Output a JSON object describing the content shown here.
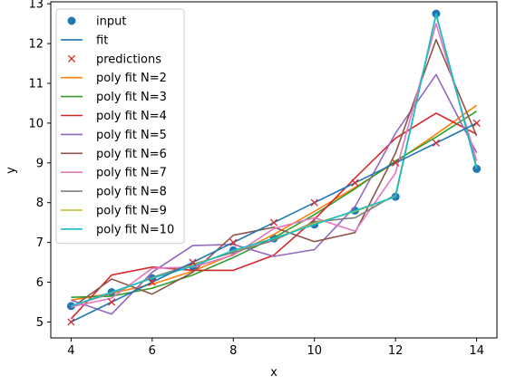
{
  "chart_data": {
    "type": "line",
    "title": "",
    "xlabel": "x",
    "ylabel": "y",
    "xlim": [
      3.5,
      14.5
    ],
    "ylim": [
      4.6,
      13.05
    ],
    "xticks": [
      "4",
      "6",
      "8",
      "10",
      "12",
      "14"
    ],
    "yticks": [
      "5",
      "6",
      "7",
      "8",
      "9",
      "10",
      "11",
      "12",
      "13"
    ],
    "grid": false,
    "legend_position": "top-left",
    "x": [
      4,
      5,
      6,
      7,
      8,
      9,
      10,
      11,
      12,
      13,
      14
    ],
    "series": [
      {
        "name": "input",
        "kind": "scatter",
        "marker": "circle",
        "color": "#1f77b4",
        "values": [
          5.4,
          5.75,
          6.1,
          6.4,
          6.8,
          7.1,
          7.45,
          7.8,
          8.15,
          12.75,
          8.85
        ]
      },
      {
        "name": "fit",
        "kind": "line",
        "color": "#1f77b4",
        "values": [
          5.0,
          5.5,
          6.0,
          6.5,
          7.0,
          7.5,
          8.0,
          8.5,
          9.0,
          9.5,
          10.0
        ]
      },
      {
        "name": "predictions",
        "kind": "scatter",
        "marker": "x",
        "color": "#d62728",
        "values": [
          5.0,
          5.5,
          6.0,
          6.5,
          7.0,
          7.5,
          8.0,
          8.5,
          9.0,
          9.5,
          10.0
        ]
      },
      {
        "name": "poly fit N=2",
        "kind": "line",
        "color": "#ff7f0e",
        "values": [
          5.55,
          5.72,
          5.95,
          6.28,
          6.7,
          7.2,
          7.78,
          8.38,
          9.02,
          9.72,
          10.45
        ]
      },
      {
        "name": "poly fit N=3",
        "kind": "line",
        "color": "#2ca02c",
        "values": [
          5.62,
          5.65,
          5.85,
          6.18,
          6.62,
          7.12,
          7.7,
          8.35,
          9.05,
          9.65,
          10.3
        ]
      },
      {
        "name": "poly fit N=4",
        "kind": "line",
        "color": "#d62728",
        "values": [
          5.08,
          6.18,
          6.38,
          6.3,
          6.3,
          6.68,
          7.58,
          8.62,
          9.62,
          10.25,
          9.72
        ]
      },
      {
        "name": "poly fit N=5",
        "kind": "line",
        "color": "#9467bd",
        "values": [
          5.55,
          5.2,
          6.25,
          6.92,
          6.95,
          6.65,
          6.82,
          7.9,
          9.75,
          11.22,
          9.25
        ]
      },
      {
        "name": "poly fit N=6",
        "kind": "line",
        "color": "#8c564b",
        "values": [
          5.35,
          6.08,
          5.7,
          6.25,
          7.18,
          7.38,
          7.02,
          7.25,
          9.25,
          12.1,
          9.68
        ]
      },
      {
        "name": "poly fit N=7",
        "kind": "line",
        "color": "#e377c2",
        "values": [
          5.38,
          5.6,
          6.35,
          6.38,
          6.68,
          7.35,
          7.62,
          7.28,
          8.75,
          12.5,
          9.05
        ]
      },
      {
        "name": "poly fit N=8",
        "kind": "line",
        "color": "#7f7f7f",
        "values": [
          5.4,
          5.72,
          6.12,
          6.45,
          6.75,
          7.05,
          7.52,
          7.62,
          8.2,
          12.72,
          8.9
        ]
      },
      {
        "name": "poly fit N=9",
        "kind": "line",
        "color": "#bcbd22",
        "values": [
          5.4,
          5.74,
          6.1,
          6.42,
          6.79,
          7.1,
          7.48,
          7.78,
          8.15,
          12.74,
          8.86
        ]
      },
      {
        "name": "poly fit N=10",
        "kind": "line",
        "color": "#17becf",
        "values": [
          5.4,
          5.75,
          6.1,
          6.4,
          6.8,
          7.1,
          7.45,
          7.8,
          8.15,
          12.75,
          8.85
        ]
      }
    ]
  }
}
